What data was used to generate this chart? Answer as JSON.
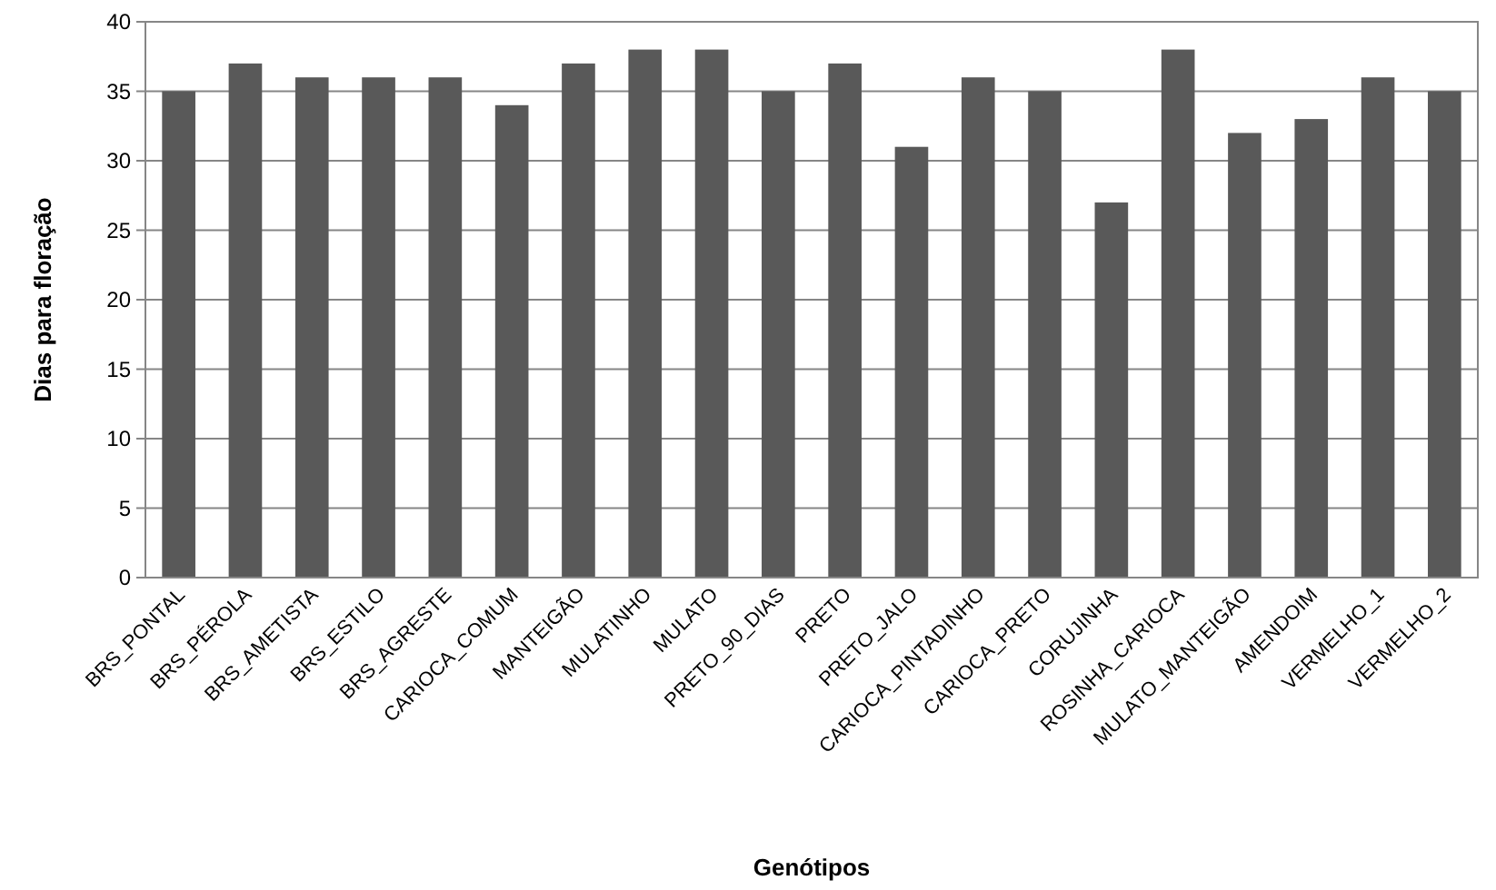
{
  "chart_data": {
    "type": "bar",
    "xlabel": "Genótipos",
    "ylabel": "Dias para floração",
    "categories": [
      "BRS_PONTAL",
      "BRS_PÉROLA",
      "BRS_AMETISTA",
      "BRS_ESTILO",
      "BRS_AGRESTE",
      "CARIOCA_COMUM",
      "MANTEIGÃO",
      "MULATINHO",
      "MULATO",
      "PRETO_90_DIAS",
      "PRETO",
      "PRETO_JALO",
      "CARIOCA_PINTADINHO",
      "CARIOCA_PRETO",
      "CORUJINHA",
      "ROSINHA_CARIOCA",
      "MULATO_MANTEIGÃO",
      "AMENDOIM",
      "VERMELHO_1",
      "VERMELHO_2"
    ],
    "values": [
      35,
      37,
      36,
      36,
      36,
      34,
      37,
      38,
      38,
      35,
      37,
      31,
      36,
      35,
      27,
      38,
      32,
      33,
      36,
      35
    ],
    "color": "#595959",
    "ylim": [
      0,
      40
    ],
    "yticks": [
      0,
      5,
      10,
      15,
      20,
      25,
      30,
      35,
      40
    ],
    "grid": "y"
  }
}
